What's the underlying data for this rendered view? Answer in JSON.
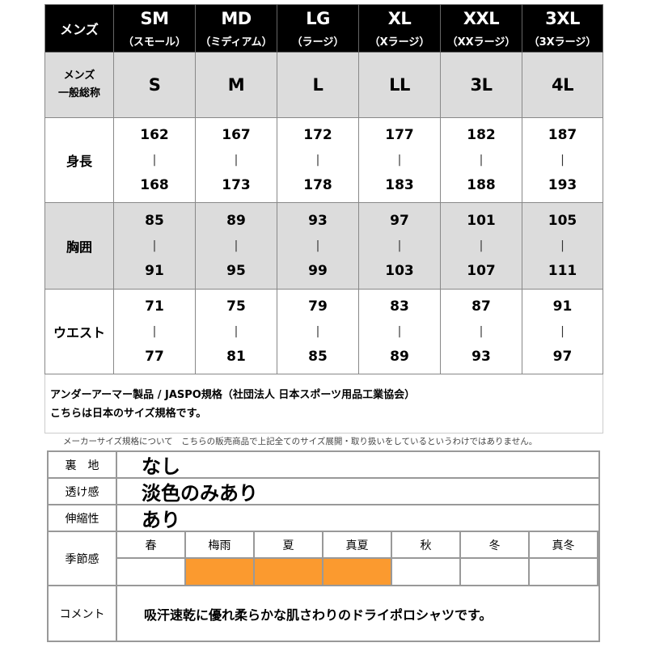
{
  "size_table": {
    "corner": "メンズ",
    "sizes": [
      {
        "code": "SM",
        "name": "（スモール）",
        "general": "S",
        "height": [
          "162",
          "168"
        ],
        "chest": [
          "85",
          "91"
        ],
        "waist": [
          "71",
          "77"
        ]
      },
      {
        "code": "MD",
        "name": "（ミディアム）",
        "general": "M",
        "height": [
          "167",
          "173"
        ],
        "chest": [
          "89",
          "95"
        ],
        "waist": [
          "75",
          "81"
        ]
      },
      {
        "code": "LG",
        "name": "（ラージ）",
        "general": "L",
        "height": [
          "172",
          "178"
        ],
        "chest": [
          "93",
          "99"
        ],
        "waist": [
          "79",
          "85"
        ]
      },
      {
        "code": "XL",
        "name": "（Xラージ）",
        "general": "LL",
        "height": [
          "177",
          "183"
        ],
        "chest": [
          "97",
          "103"
        ],
        "waist": [
          "83",
          "89"
        ]
      },
      {
        "code": "XXL",
        "name": "（XXラージ）",
        "general": "3L",
        "height": [
          "182",
          "188"
        ],
        "chest": [
          "101",
          "107"
        ],
        "waist": [
          "87",
          "93"
        ]
      },
      {
        "code": "3XL",
        "name": "（3Xラージ）",
        "general": "4L",
        "height": [
          "187",
          "193"
        ],
        "chest": [
          "105",
          "111"
        ],
        "waist": [
          "91",
          "97"
        ]
      }
    ],
    "row_labels": {
      "general_1": "メンズ",
      "general_2": "一般総称",
      "height": "身長",
      "chest": "胸囲",
      "waist": "ウエスト"
    },
    "range_separator": "|",
    "note_1": "アンダーアーマー製品 / JASPO規格（社団法人 日本スポーツ用品工業協会）",
    "note_2": "こちらは日本のサイズ規格です。"
  },
  "disclaimer": "メーカーサイズ規格について　こちらの販売商品で上記全てのサイズ展開・取り扱いをしているというわけではありません。",
  "spec": {
    "lining_label": "裏　地",
    "lining": "なし",
    "sheer_label": "透け感",
    "sheer": "淡色のみあり",
    "stretch_label": "伸縮性",
    "stretch": "あり",
    "season_label": "季節感",
    "seasons": [
      {
        "name": "春",
        "active": false
      },
      {
        "name": "梅雨",
        "active": true
      },
      {
        "name": "夏",
        "active": true
      },
      {
        "name": "真夏",
        "active": true
      },
      {
        "name": "秋",
        "active": false
      },
      {
        "name": "冬",
        "active": false
      },
      {
        "name": "真冬",
        "active": false
      }
    ],
    "active_color": "#fb9a2f",
    "comment_label": "コメント",
    "comment": "吸汗速乾に優れ柔らかな肌さわりのドライポロシャツです。"
  }
}
